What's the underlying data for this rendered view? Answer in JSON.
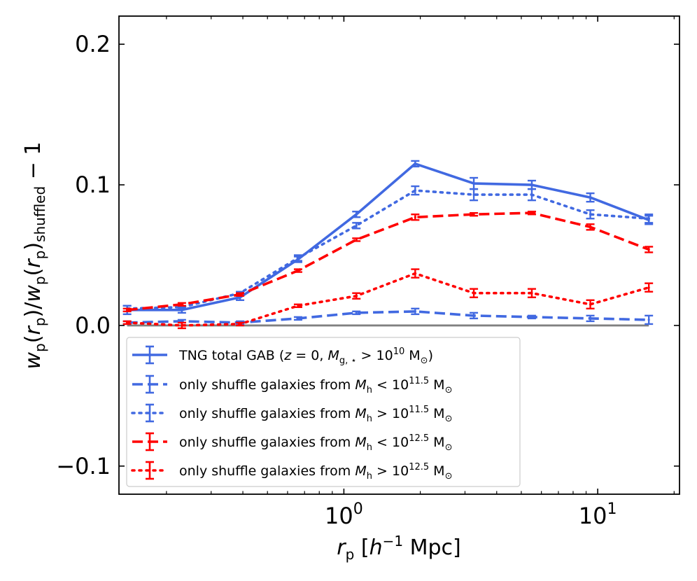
{
  "chart_data": {
    "type": "line",
    "xscale": "log",
    "xlim": [
      0.13,
      21
    ],
    "ylim": [
      -0.12,
      0.22
    ],
    "xlabel": "r_p [h^-1 Mpc]",
    "ylabel": "w_p(r_p)/w_p(r_p)_shuffled - 1",
    "x_ticks": [
      {
        "value": 1,
        "base": "10",
        "exp": "0"
      },
      {
        "value": 10,
        "base": "10",
        "exp": "1"
      }
    ],
    "y_ticks": [
      {
        "value": -0.1,
        "label": "−0.1"
      },
      {
        "value": 0.0,
        "label": "0.0"
      },
      {
        "value": 0.1,
        "label": "0.1"
      },
      {
        "value": 0.2,
        "label": "0.2"
      }
    ],
    "reference_line": {
      "y": 0.0,
      "color": "#808080"
    },
    "x": [
      0.14,
      0.23,
      0.39,
      0.66,
      1.12,
      1.91,
      3.25,
      5.5,
      9.35,
      15.9
    ],
    "series": [
      {
        "name": "TNG total GAB (z = 0, M_g,* > 10^10 M_sun)",
        "color": "#4169e1",
        "linestyle": "solid",
        "values": [
          0.011,
          0.011,
          0.02,
          0.047,
          0.079,
          0.115,
          0.101,
          0.1,
          0.091,
          0.075
        ],
        "errors": [
          0.003,
          0.002,
          0.002,
          0.002,
          0.002,
          0.002,
          0.004,
          0.003,
          0.003,
          0.003
        ]
      },
      {
        "name": "only shuffle galaxies from M_h < 10^11.5 M_sun",
        "color": "#4169e1",
        "linestyle": "dashed",
        "values": [
          0.002,
          0.003,
          0.002,
          0.005,
          0.009,
          0.01,
          0.007,
          0.006,
          0.005,
          0.004
        ],
        "errors": [
          0.001,
          0.001,
          0.001,
          0.001,
          0.001,
          0.002,
          0.002,
          0.001,
          0.002,
          0.003
        ]
      },
      {
        "name": "only shuffle galaxies from M_h > 10^11.5 M_sun",
        "color": "#4169e1",
        "linestyle": "dotted",
        "values": [
          0.012,
          0.013,
          0.023,
          0.048,
          0.071,
          0.096,
          0.093,
          0.093,
          0.079,
          0.076
        ],
        "errors": [
          0.002,
          0.001,
          0.001,
          0.002,
          0.002,
          0.003,
          0.004,
          0.004,
          0.003,
          0.003
        ]
      },
      {
        "name": "only shuffle galaxies from M_h < 10^12.5 M_sun",
        "color": "#ff0000",
        "linestyle": "dashed",
        "values": [
          0.011,
          0.015,
          0.022,
          0.039,
          0.061,
          0.077,
          0.079,
          0.08,
          0.07,
          0.054
        ],
        "errors": [
          0.001,
          0.001,
          0.001,
          0.001,
          0.001,
          0.002,
          0.001,
          0.001,
          0.002,
          0.002
        ]
      },
      {
        "name": "only shuffle galaxies from M_h > 10^12.5 M_sun",
        "color": "#ff0000",
        "linestyle": "dotted",
        "values": [
          0.002,
          0.0,
          0.001,
          0.014,
          0.021,
          0.037,
          0.023,
          0.023,
          0.015,
          0.027
        ],
        "errors": [
          0.001,
          0.002,
          0.001,
          0.001,
          0.002,
          0.003,
          0.003,
          0.003,
          0.003,
          0.003
        ]
      }
    ],
    "legend": {
      "position": "lower-left",
      "entries": [
        {
          "prefix": "TNG total GAB (",
          "z_var": "z",
          "z_eq": " = 0, ",
          "m_var": "M",
          "m_sub": "g, ⋆",
          "rel": " > ",
          "base": "10",
          "exp": "10",
          "unit": " M",
          "unit_sub": "⊙",
          "suffix": ")"
        },
        {
          "prefix": "only shuffle galaxies from ",
          "m_var": "M",
          "m_sub": "h",
          "rel": " < ",
          "base": "10",
          "exp": "11.5",
          "unit": " M",
          "unit_sub": "⊙",
          "suffix": ""
        },
        {
          "prefix": "only shuffle galaxies from ",
          "m_var": "M",
          "m_sub": "h",
          "rel": " > ",
          "base": "10",
          "exp": "11.5",
          "unit": " M",
          "unit_sub": "⊙",
          "suffix": ""
        },
        {
          "prefix": "only shuffle galaxies from ",
          "m_var": "M",
          "m_sub": "h",
          "rel": " < ",
          "base": "10",
          "exp": "12.5",
          "unit": " M",
          "unit_sub": "⊙",
          "suffix": ""
        },
        {
          "prefix": "only shuffle galaxies from ",
          "m_var": "M",
          "m_sub": "h",
          "rel": " > ",
          "base": "10",
          "exp": "12.5",
          "unit": " M",
          "unit_sub": "⊙",
          "suffix": ""
        }
      ]
    },
    "axis_label_parts": {
      "x": {
        "var": "r",
        "sub": "p",
        "open": " [",
        "h": "h",
        "hexp": "−1",
        "unit": " Mpc]"
      },
      "y": {
        "w1": "w",
        "p1": "p",
        "open1": "(",
        "r1": "r",
        "p2": "p",
        "mid": ")/",
        "w2": "w",
        "p3": "p",
        "open2": "(",
        "r2": "r",
        "p4": "p",
        "close": ")",
        "sub": "shuffled",
        "tail": " − 1"
      }
    }
  }
}
